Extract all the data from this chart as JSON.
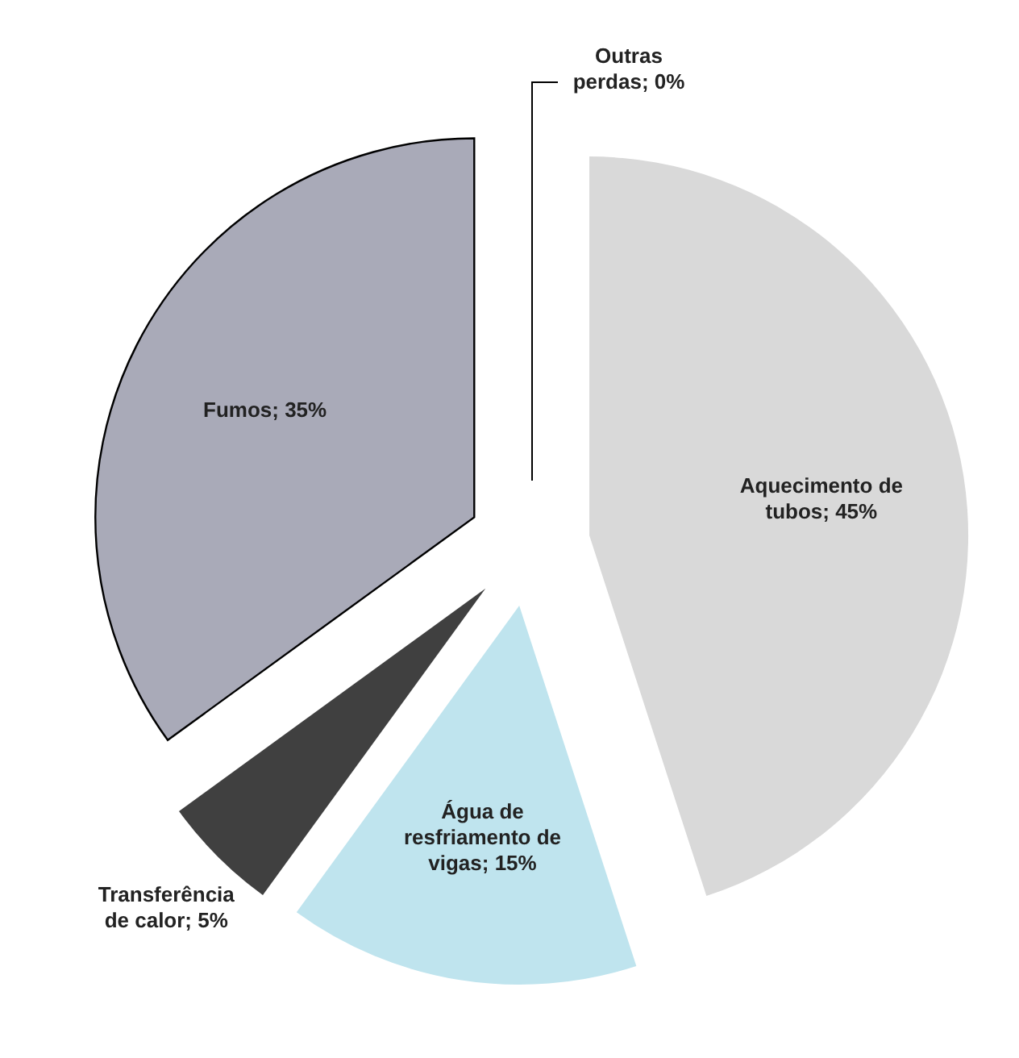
{
  "chart_data": {
    "type": "pie",
    "categories": [
      "Aquecimento de tubos",
      "Água de resfriamento de vigas",
      "Transferência de calor",
      "Fumos",
      "Outras perdas"
    ],
    "values": [
      45,
      15,
      5,
      35,
      0
    ],
    "value_labels": [
      "; 45%",
      "; 15%",
      "; 5%",
      "; 35%",
      "; 0%"
    ],
    "colors": [
      "#d9d9d9",
      "#bfe4ee",
      "#404040",
      "#a9aab8",
      "#ffffff"
    ],
    "data_labels": true,
    "legend": false
  }
}
